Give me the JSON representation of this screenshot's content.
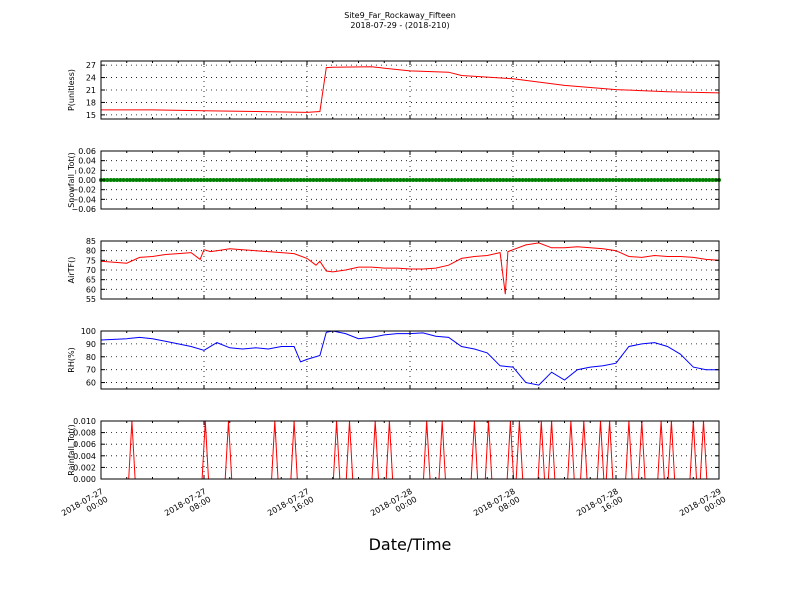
{
  "figure": {
    "title_line1": "Site9_Far_Rockaway_Fifteen",
    "title_line2": "2018-07-29 - (2018-210)",
    "xlabel": "Date/Time",
    "x_tick_labels": [
      [
        "2018-07-27",
        "00:00"
      ],
      [
        "2018-07-27",
        "08:00"
      ],
      [
        "2018-07-27",
        "16:00"
      ],
      [
        "2018-07-28",
        "00:00"
      ],
      [
        "2018-07-28",
        "08:00"
      ],
      [
        "2018-07-28",
        "16:00"
      ],
      [
        "2018-07-29",
        "00:00"
      ]
    ]
  },
  "chart_data": [
    {
      "type": "line",
      "ylabel": "P(unitless)",
      "color": "#ff0000",
      "ylim": [
        14,
        28
      ],
      "yticks": [
        15,
        18,
        21,
        24,
        27
      ],
      "ytick_labels": [
        "15",
        "18",
        "21",
        "24",
        "27"
      ],
      "grid": true,
      "x_hours": [
        0,
        4,
        8,
        12,
        16,
        17,
        17.5,
        18,
        21,
        24,
        27,
        28,
        32,
        36,
        40,
        44,
        48
      ],
      "values": [
        16.2,
        16.2,
        16.0,
        15.8,
        15.6,
        15.8,
        26.4,
        26.5,
        26.6,
        25.6,
        25.3,
        24.5,
        23.7,
        22.1,
        21.1,
        20.6,
        20.3
      ]
    },
    {
      "type": "scatter",
      "ylabel": "Snowfall_Tot()",
      "color": "#008000",
      "ylim": [
        -0.06,
        0.06
      ],
      "yticks": [
        -0.06,
        -0.04,
        -0.02,
        0.0,
        0.02,
        0.04,
        0.06
      ],
      "ytick_labels": [
        "−0.06",
        "−0.04",
        "−0.02",
        "0.00",
        "0.02",
        "0.04",
        "0.06"
      ],
      "grid": true,
      "constant_value": 0.0,
      "x_range_hours": [
        0,
        48
      ]
    },
    {
      "type": "line",
      "ylabel": "AirTF()",
      "color": "#ff0000",
      "ylim": [
        55,
        85
      ],
      "yticks": [
        55,
        60,
        65,
        70,
        75,
        80,
        85
      ],
      "ytick_labels": [
        "55",
        "60",
        "65",
        "70",
        "75",
        "80",
        "85"
      ],
      "grid": true,
      "x_hours": [
        0,
        1,
        2,
        3,
        4,
        5,
        6,
        7,
        7.7,
        8,
        8.5,
        9,
        10,
        11,
        12,
        13,
        14,
        15,
        16,
        16.7,
        17,
        17.5,
        18,
        19,
        20,
        21,
        22,
        23,
        24,
        25,
        26,
        27,
        28,
        29,
        30,
        31,
        31.4,
        31.6,
        32,
        33,
        34,
        35,
        36,
        37,
        38,
        39,
        40,
        41,
        42,
        43,
        44,
        45,
        46,
        47,
        48
      ],
      "values": [
        74.5,
        74.0,
        73.5,
        76.5,
        77.0,
        78.0,
        78.5,
        79.0,
        75.5,
        80.5,
        79.5,
        80.0,
        81.0,
        80.5,
        80.0,
        79.5,
        79.0,
        78.5,
        76.0,
        72.5,
        74.5,
        69.5,
        69.0,
        70.0,
        71.5,
        71.5,
        71.0,
        71.0,
        70.5,
        70.5,
        71.0,
        72.5,
        76.0,
        77.0,
        77.5,
        79.0,
        57.5,
        79.5,
        80.5,
        83.0,
        84.0,
        81.5,
        81.5,
        82.0,
        81.5,
        81.0,
        80.0,
        77.0,
        76.5,
        77.5,
        77.0,
        77.0,
        76.5,
        75.5,
        75.0
      ]
    },
    {
      "type": "line",
      "ylabel": "RH(%)",
      "color": "#0000ff",
      "ylim": [
        55,
        100
      ],
      "yticks": [
        60,
        70,
        80,
        90,
        100
      ],
      "ytick_labels": [
        "60",
        "70",
        "80",
        "90",
        "100"
      ],
      "grid": true,
      "x_hours": [
        0,
        1,
        2,
        3,
        4,
        5,
        6,
        7,
        8,
        9,
        10,
        11,
        12,
        13,
        14,
        15,
        15.5,
        16,
        17,
        17.5,
        18,
        19,
        20,
        21,
        22,
        23,
        24,
        25,
        26,
        27,
        28,
        29,
        30,
        31,
        32,
        33,
        34,
        35,
        36,
        37,
        38,
        39,
        40,
        41,
        42,
        43,
        44,
        45,
        46,
        47,
        48
      ],
      "values": [
        93,
        93.5,
        94,
        95,
        94,
        92,
        90,
        88,
        85,
        91,
        87,
        86,
        87,
        86,
        88,
        88,
        76,
        78,
        81,
        99,
        100,
        98,
        94,
        95,
        97,
        98,
        98,
        98.5,
        96,
        95,
        88,
        86,
        83,
        73,
        72,
        60,
        58,
        68,
        62,
        70,
        72,
        73,
        75,
        88,
        90,
        91,
        88,
        82,
        72,
        70,
        70
      ]
    },
    {
      "type": "line",
      "ylabel": "Rainfall_Tot()",
      "color": "#ff0000",
      "ylim": [
        0,
        0.01
      ],
      "yticks": [
        0.0,
        0.002,
        0.004,
        0.006,
        0.008,
        0.01
      ],
      "ytick_labels": [
        "0.000",
        "0.002",
        "0.004",
        "0.006",
        "0.008",
        "0.010"
      ],
      "grid": true,
      "baseline_value": 0.0,
      "spike_value": 0.01,
      "spike_hours": [
        2.4,
        8.1,
        9.9,
        13.5,
        15.0,
        18.3,
        19.3,
        21.3,
        22.4,
        25.3,
        26.5,
        29.0,
        30.1,
        31.8,
        32.5,
        34.2,
        35.0,
        36.5,
        37.5,
        38.8,
        39.5,
        41.0,
        42.0,
        43.5,
        44.3,
        46.0,
        46.8
      ]
    }
  ]
}
